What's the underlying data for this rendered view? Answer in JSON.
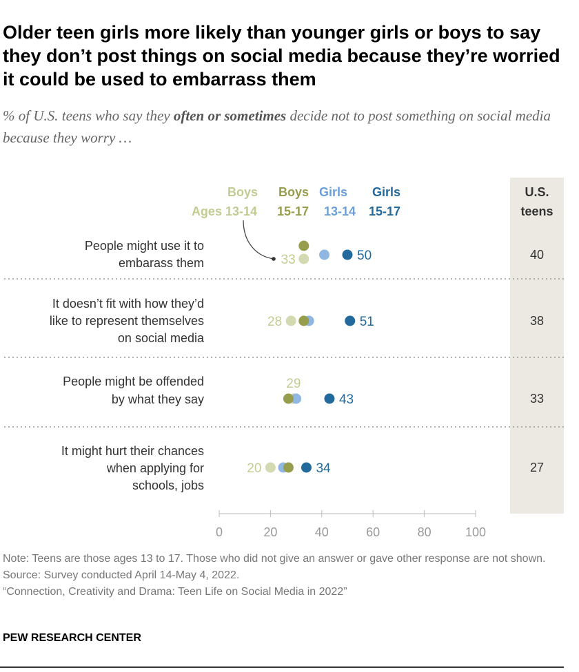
{
  "title": "Older teen girls more likely than younger girls or boys to say they don’t post things on social media because they’re worried it could be used to embarrass them",
  "subtitle_pre": "% of U.S. teens who say they ",
  "subtitle_bold": "often or sometimes",
  "subtitle_post": " decide not to post something on social media because they worry …",
  "note": "Note: Teens are those ages 13 to 17. Those who did not give an answer or gave other response are not shown.",
  "source": "Source: Survey conducted April 14-May 4, 2022.",
  "report": "“Connection, Creativity and Drama: Teen Life on Social Media in 2022”",
  "brand": "PEW RESEARCH CENTER",
  "chart_data": {
    "type": "dot",
    "xlim": [
      0,
      100
    ],
    "xticks": [
      0,
      20,
      40,
      60,
      80,
      100
    ],
    "total_header": [
      "U.S.",
      "teens"
    ],
    "series": [
      {
        "name": "Boys Ages 13-14",
        "label_lines": [
          "Boys",
          "Ages 13-14"
        ],
        "color": "#d3dab1",
        "label_color": "#c2cc92",
        "values": [
          33,
          28,
          29,
          20
        ]
      },
      {
        "name": "Boys 15-17",
        "label_lines": [
          "Boys",
          "15-17"
        ],
        "color": "#969d4c",
        "label_color": "#969d4c",
        "values": [
          33,
          33,
          27,
          27
        ]
      },
      {
        "name": "Girls 13-14",
        "label_lines": [
          "Girls",
          "13-14"
        ],
        "color": "#8fb7e1",
        "label_color": "#6c9fd8",
        "values": [
          41,
          35,
          30,
          25
        ]
      },
      {
        "name": "Girls 15-17",
        "label_lines": [
          "Girls",
          "15-17"
        ],
        "color": "#236a9c",
        "label_color": "#236a9c",
        "values": [
          50,
          51,
          43,
          34
        ]
      }
    ],
    "categories": [
      {
        "lines": [
          "People might use it to",
          "embarass them"
        ],
        "total": 40
      },
      {
        "lines": [
          "It doesn’t fit with how they’d",
          "like to represent themselves",
          "on social media"
        ],
        "total": 38
      },
      {
        "lines": [
          "People might be offended",
          "by what they say"
        ],
        "total": 33
      },
      {
        "lines": [
          "It might hurt their chances",
          "when applying for",
          "schools, jobs"
        ],
        "total": 27
      }
    ],
    "labeled_values": [
      {
        "series": 0,
        "side": "left"
      },
      {
        "series": 3,
        "side": "right"
      }
    ],
    "colors": {
      "total_column": "#ece9e2",
      "grid": "#999999",
      "axis_text": "#999999"
    }
  }
}
